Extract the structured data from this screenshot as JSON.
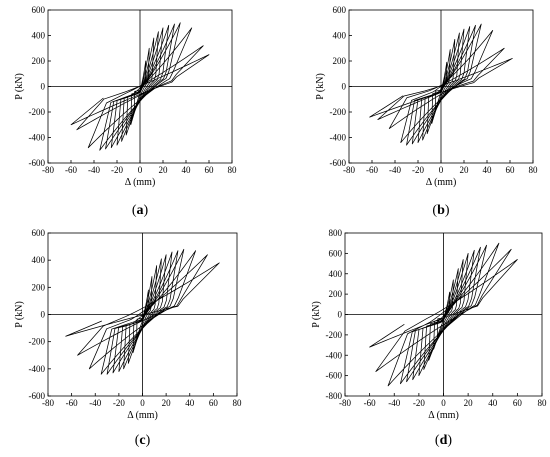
{
  "figure": {
    "panels": [
      "(a)",
      "(b)",
      "(c)",
      "(d)"
    ]
  },
  "chart_data": [
    {
      "type": "line",
      "panel_label": "(a)",
      "xlabel": "Δ (mm)",
      "ylabel": "P (kN)",
      "xlim": [
        -80,
        80
      ],
      "ylim": [
        -600,
        600
      ],
      "xticks": [
        -80,
        -60,
        -40,
        -20,
        0,
        20,
        40,
        60,
        80
      ],
      "yticks": [
        -600,
        -400,
        -200,
        0,
        200,
        400,
        600
      ],
      "grid": false,
      "series": [
        {
          "amplitudes": [
            5,
            8,
            12,
            16,
            20,
            25,
            30,
            35,
            45,
            55,
            60
          ],
          "peak_positive": [
            200,
            300,
            380,
            430,
            460,
            480,
            490,
            500,
            460,
            320,
            250
          ],
          "peak_negative": [
            -200,
            -300,
            -380,
            -430,
            -460,
            -480,
            -490,
            -500,
            -480,
            -340,
            -300
          ]
        }
      ]
    },
    {
      "type": "line",
      "panel_label": "(b)",
      "xlabel": "Δ (mm)",
      "ylabel": "P (kN)",
      "xlim": [
        -80,
        80
      ],
      "ylim": [
        -600,
        600
      ],
      "xticks": [
        -80,
        -60,
        -40,
        -20,
        0,
        20,
        40,
        60,
        80
      ],
      "yticks": [
        -600,
        -400,
        -200,
        0,
        200,
        400,
        600
      ],
      "grid": false,
      "series": [
        {
          "amplitudes": [
            5,
            8,
            12,
            16,
            20,
            25,
            30,
            35,
            45,
            55,
            62
          ],
          "peak_positive": [
            190,
            290,
            370,
            420,
            450,
            470,
            480,
            490,
            440,
            300,
            220
          ],
          "peak_negative": [
            -190,
            -290,
            -370,
            -420,
            -440,
            -450,
            -460,
            -440,
            -330,
            -260,
            -240
          ]
        }
      ]
    },
    {
      "type": "line",
      "panel_label": "(c)",
      "xlabel": "Δ (mm)",
      "ylabel": "P (kN)",
      "xlim": [
        -80,
        80
      ],
      "ylim": [
        -600,
        600
      ],
      "xticks": [
        -80,
        -60,
        -40,
        -20,
        0,
        20,
        40,
        60,
        80
      ],
      "yticks": [
        -600,
        -400,
        -200,
        0,
        200,
        400,
        600
      ],
      "grid": false,
      "series": [
        {
          "amplitudes": [
            5,
            8,
            12,
            16,
            20,
            25,
            30,
            35,
            45,
            55,
            65
          ],
          "peak_positive": [
            180,
            280,
            360,
            410,
            440,
            460,
            470,
            480,
            470,
            440,
            380
          ],
          "peak_negative": [
            -180,
            -280,
            -360,
            -400,
            -420,
            -430,
            -440,
            -440,
            -400,
            -300,
            -160
          ]
        }
      ]
    },
    {
      "type": "line",
      "panel_label": "(d)",
      "xlabel": "Δ (mm)",
      "ylabel": "P (kN)",
      "xlim": [
        -80,
        80
      ],
      "ylim": [
        -800,
        800
      ],
      "xticks": [
        -80,
        -60,
        -40,
        -20,
        0,
        20,
        40,
        60,
        80
      ],
      "yticks": [
        -800,
        -600,
        -400,
        -200,
        0,
        200,
        400,
        600,
        800
      ],
      "grid": false,
      "series": [
        {
          "amplitudes": [
            5,
            8,
            12,
            16,
            20,
            25,
            30,
            35,
            45,
            55,
            60
          ],
          "peak_positive": [
            220,
            340,
            450,
            540,
            600,
            630,
            660,
            680,
            700,
            640,
            540
          ],
          "peak_negative": [
            -220,
            -340,
            -450,
            -540,
            -600,
            -640,
            -660,
            -680,
            -700,
            -560,
            -320
          ]
        }
      ]
    }
  ]
}
